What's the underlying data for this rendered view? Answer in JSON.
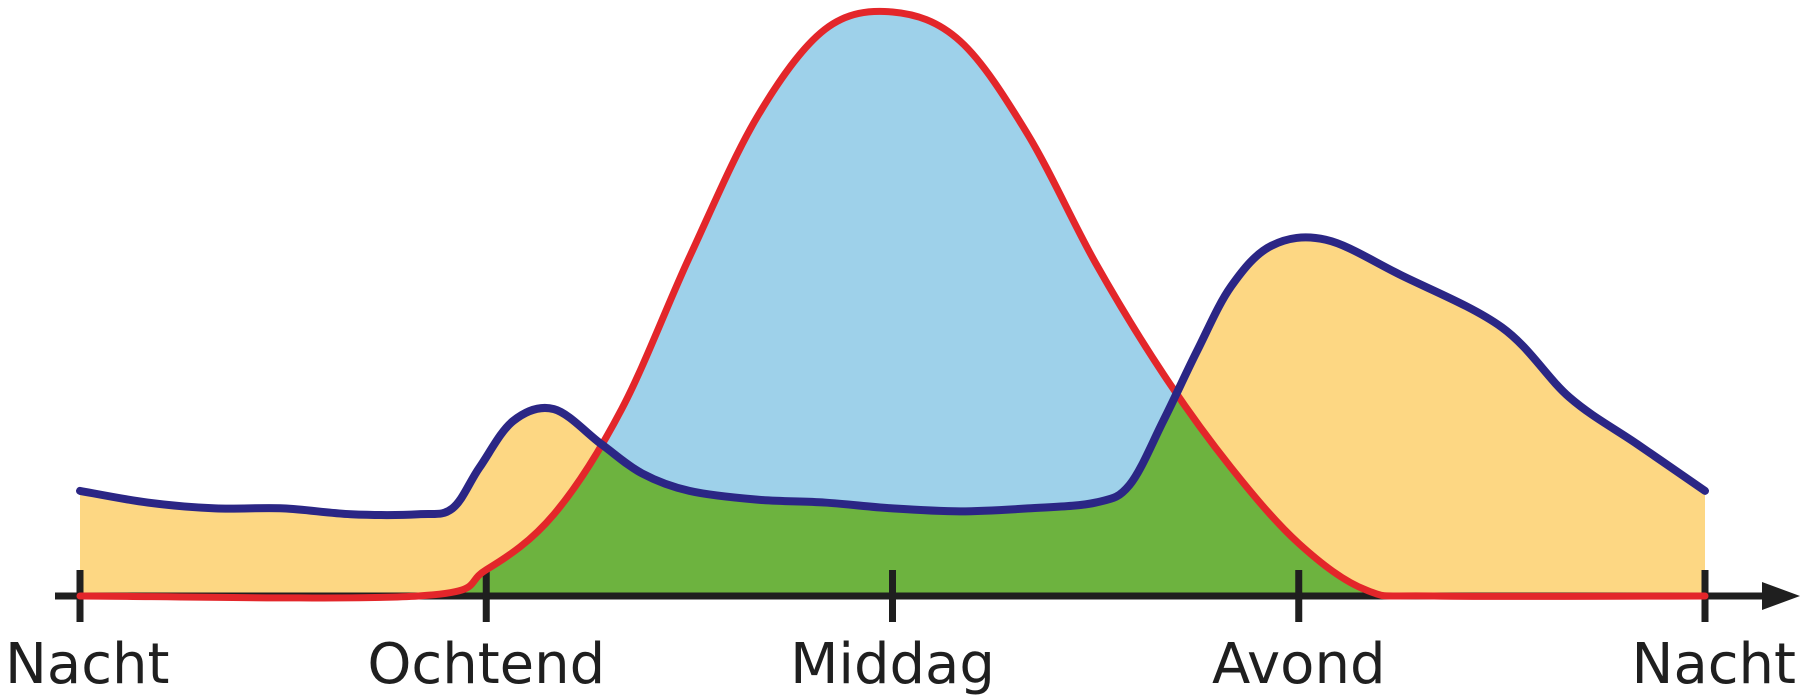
{
  "chart_data": {
    "type": "area",
    "title": "",
    "xlabel": "",
    "ylabel": "",
    "x_categories": [
      "Nacht",
      "Ochtend",
      "Middag",
      "Avond",
      "Nacht"
    ],
    "x_tick_positions": [
      0,
      6,
      12,
      18,
      24
    ],
    "xlim": [
      0,
      24
    ],
    "ylim": [
      0,
      100
    ],
    "grid": false,
    "axis_arrow": true,
    "series": [
      {
        "key": "consumption",
        "color": "#2b2685",
        "fill": "#fdd783",
        "points": [
          [
            0,
            18
          ],
          [
            1,
            16
          ],
          [
            2,
            15
          ],
          [
            3,
            15
          ],
          [
            4,
            14
          ],
          [
            5,
            14
          ],
          [
            5.5,
            15
          ],
          [
            5.9,
            22
          ],
          [
            6.4,
            30
          ],
          [
            7,
            32
          ],
          [
            7.7,
            26
          ],
          [
            8.3,
            21
          ],
          [
            9,
            18
          ],
          [
            10,
            16.5
          ],
          [
            11,
            16
          ],
          [
            12,
            15
          ],
          [
            13,
            14.5
          ],
          [
            14,
            15
          ],
          [
            15,
            16
          ],
          [
            15.5,
            19
          ],
          [
            16,
            30
          ],
          [
            16.5,
            42
          ],
          [
            17,
            53
          ],
          [
            17.6,
            60
          ],
          [
            18.4,
            61
          ],
          [
            19.5,
            55
          ],
          [
            21,
            46
          ],
          [
            22,
            34
          ],
          [
            23,
            26
          ],
          [
            24,
            18
          ]
        ]
      },
      {
        "key": "solar",
        "color": "#e3262a",
        "fill": "#9ed1ea",
        "points": [
          [
            0,
            0
          ],
          [
            5,
            0
          ],
          [
            6,
            4.5
          ],
          [
            7,
            14
          ],
          [
            8,
            32
          ],
          [
            9,
            58
          ],
          [
            10,
            82
          ],
          [
            11,
            97
          ],
          [
            12,
            100
          ],
          [
            13,
            95
          ],
          [
            14,
            79
          ],
          [
            15,
            57
          ],
          [
            16,
            38
          ],
          [
            17,
            22
          ],
          [
            18,
            9
          ],
          [
            19,
            1
          ],
          [
            20,
            0
          ],
          [
            24,
            0
          ]
        ]
      }
    ],
    "overlap_fill": "#6db33f",
    "axis_color": "#1f1f1f"
  }
}
